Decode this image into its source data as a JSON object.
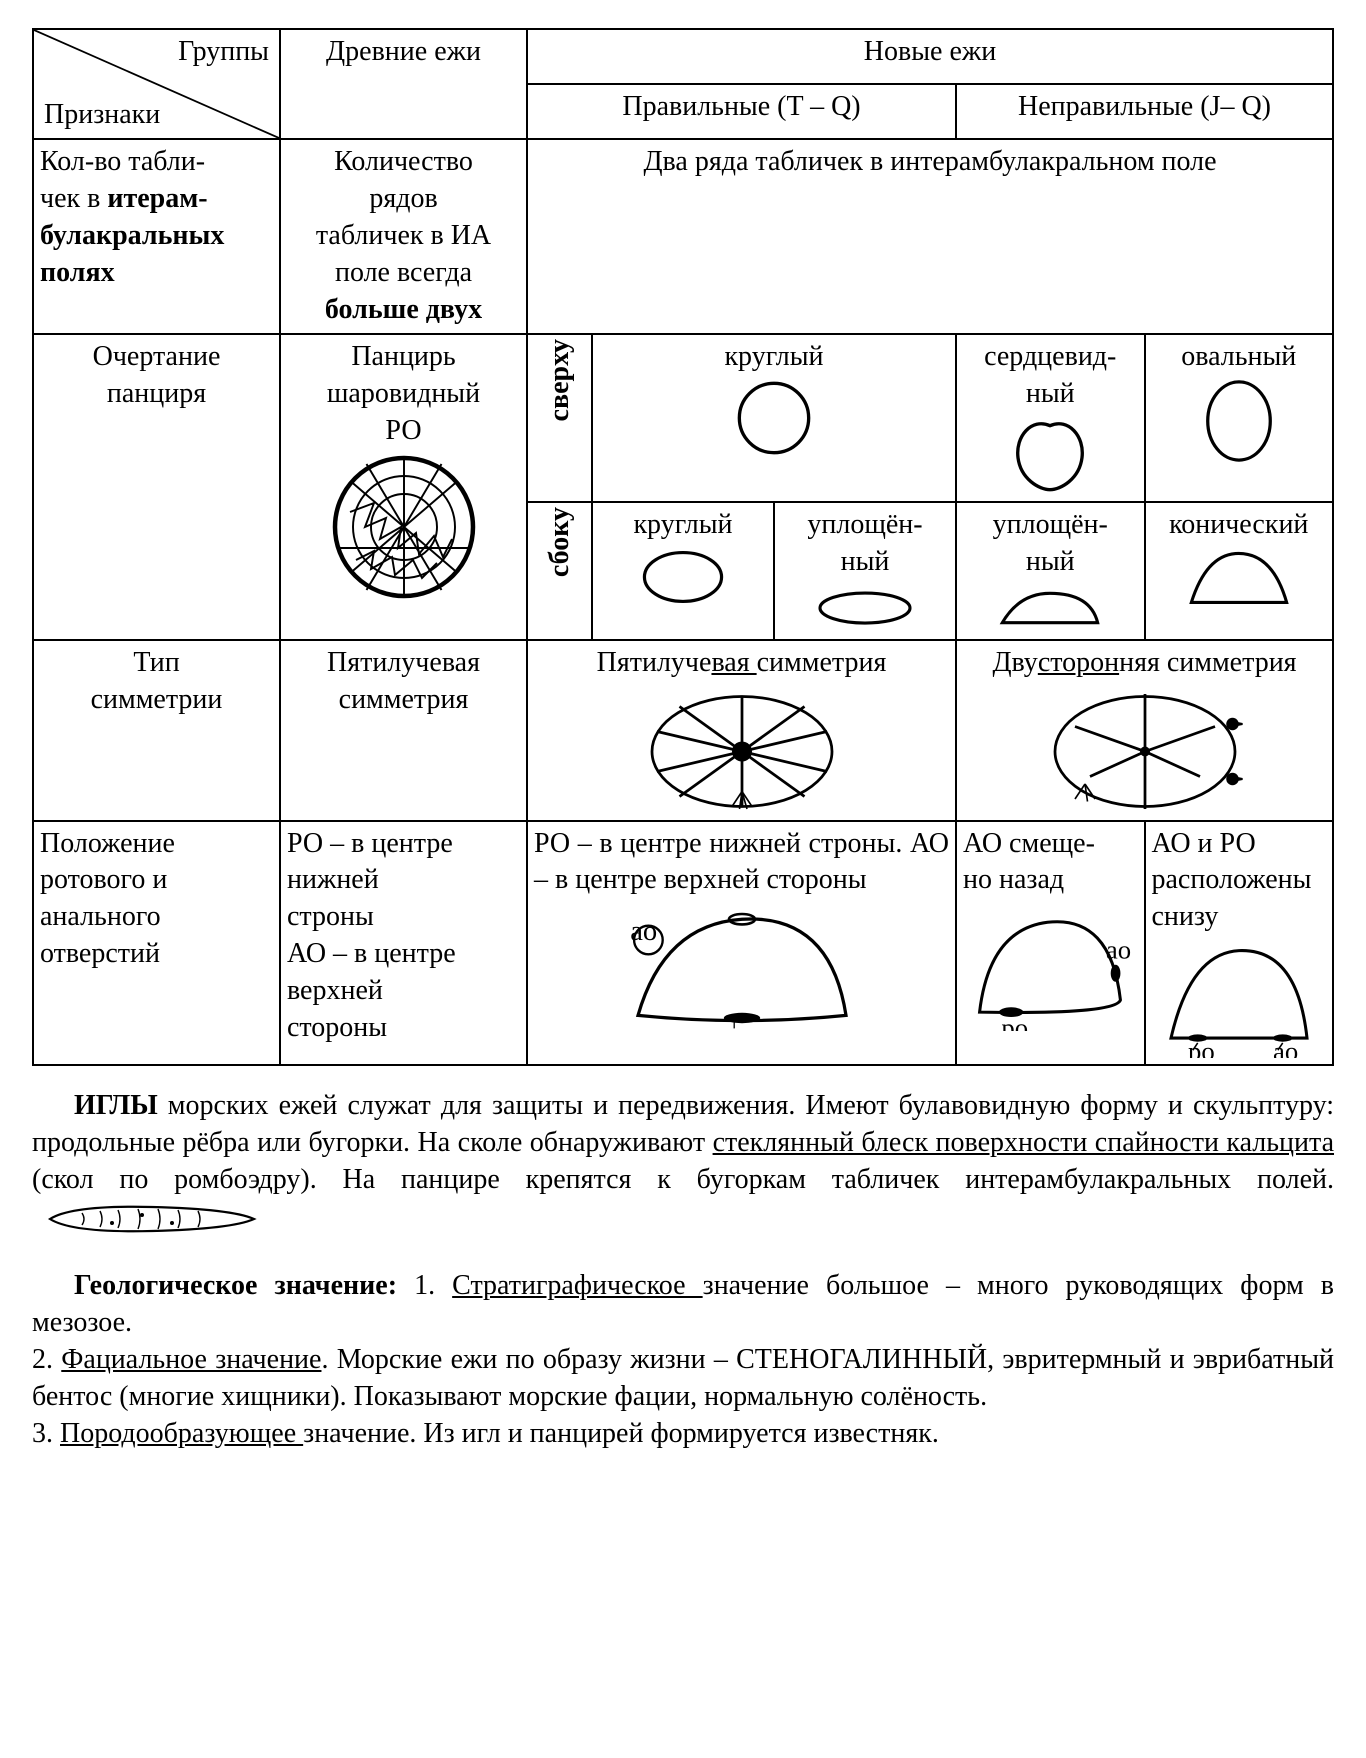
{
  "table": {
    "header": {
      "diag_top": "Группы",
      "diag_bottom": "Признаки",
      "col_ancient": "Древние ежи",
      "col_new": "Новые ежи",
      "col_regular": "Правильные (T – Q)",
      "col_irregular": "Неправильные (J– Q)"
    },
    "row_plates": {
      "label_html": "Кол-во табли-<br>чек в <b>итерам-<br>булакральных<br>полях</b>",
      "ancient_html": "Количество<br>рядов<br>табличек в ИА<br>поле всегда<br><b>больше двух</b>",
      "new": "Два ряда табличек в интерамбулакральном поле"
    },
    "row_shape": {
      "label_html": "Очертание<br>панциря",
      "ancient_html": "Панцирь<br>шаровидный<br>РО",
      "side_top": "сверху",
      "side_side": "сбоку",
      "top_labels": [
        "круглый",
        "сердцевид-<br>ный",
        "овальный"
      ],
      "side_labels": [
        "круглый",
        "уплощён-<br>ный",
        "уплощён-<br>ный",
        "конический"
      ]
    },
    "row_symmetry": {
      "label_html": "Тип<br>симметрии",
      "ancient": "Пятилучевая симметрия",
      "regular": "Пятилуче<span class='u'>вая </span>симметрия",
      "irregular": "Дву<span class='u'>сторон</span>няя симметрия"
    },
    "row_openings": {
      "label_html": "Положение<br>ротового и<br>анального<br>отверстий",
      "ancient_html": "РО – в центре<br>нижней<br>строны<br>АО – в центре<br>верхней<br>стороны",
      "regular_html": "РО – в центре нижней строны. АО – в центре верхней стороны",
      "irr1_html": "АО смеще-<br>но назад",
      "irr2_html": "АО и РО<br>расположены<br>снизу",
      "lbl_ao": "ао",
      "lbl_po": "ро"
    }
  },
  "body_text": {
    "p1_html": "<b>ИГЛЫ</b> морских ежей служат для защиты и передвижения. Имеют булавовидную форму и скульптуру: продольные рёбра или бугорки. На сколе обнаруживают <span class='u'>стеклянный блеск поверхности спайности кальцита</span> (скол по ромбоэдру). На панцире крепятся к бугоркам табличек интерамбулакральных полей.",
    "p2_html": "<b>Геологическое значение:</b> 1. <span class='u'>Стратиграфическое </span>значение большое – много руководящих форм в мезозое.",
    "p3_html": "2. <span class='u'>Фациальное значение</span>. Морские ежи по образу жизни – СТЕНОГАЛИННЫЙ, эвритермный и эврибатный бентос (многие хищники). Показывают морские фации, нормальную солёность.",
    "p4_html": "3. <span class='u'>Породообразующее </span>значение. Из игл и панцирей формируется известняк."
  },
  "style": {
    "stroke": "#000000",
    "stroke_width": 2.5,
    "font_family": "Times New Roman",
    "body_fontsize": 28,
    "background": "#ffffff"
  }
}
